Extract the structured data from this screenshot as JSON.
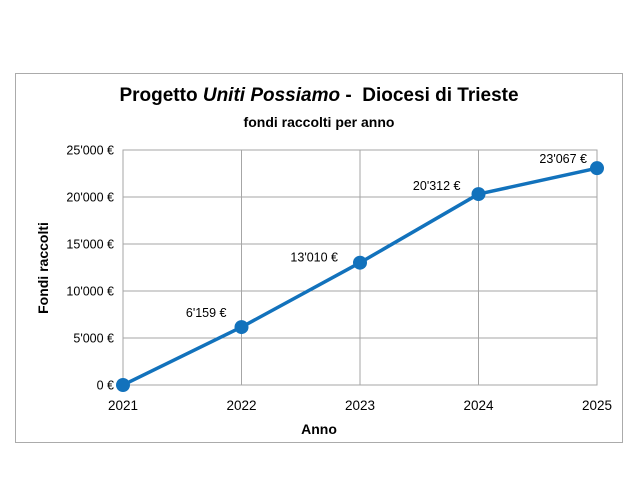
{
  "chart": {
    "title_prefix": "Progetto ",
    "title_italic": "Uniti Possiamo",
    "title_suffix": " -  Diocesi di Trieste",
    "subtitle": "fondi raccolti per anno"
  },
  "chart_data": {
    "type": "line",
    "title": "Progetto Uniti Possiamo - Diocesi di Trieste",
    "subtitle": "fondi raccolti per anno",
    "xlabel": "Anno",
    "ylabel": "Fondi raccolti",
    "categories": [
      "2021",
      "2022",
      "2023",
      "2024",
      "2025"
    ],
    "series": [
      {
        "name": "fondi raccolti",
        "values": [
          0,
          6159,
          13010,
          20312,
          23067
        ]
      }
    ],
    "point_labels": [
      "",
      "6'159 €",
      "13'010 €",
      "20'312 €",
      "23'067 €"
    ],
    "ylim": [
      0,
      25000
    ],
    "ytick_step": 5000,
    "ytick_labels": [
      "0 €",
      "5'000 €",
      "10'000 €",
      "15'000 €",
      "20'000 €",
      "25'000 €"
    ],
    "grid": true,
    "legend": "none",
    "line_color": "#1272BC",
    "marker_color": "#1272BC",
    "gridline_color": "#A6A6A6",
    "axis_color": "#A6A6A6",
    "text_color": "#000000"
  }
}
